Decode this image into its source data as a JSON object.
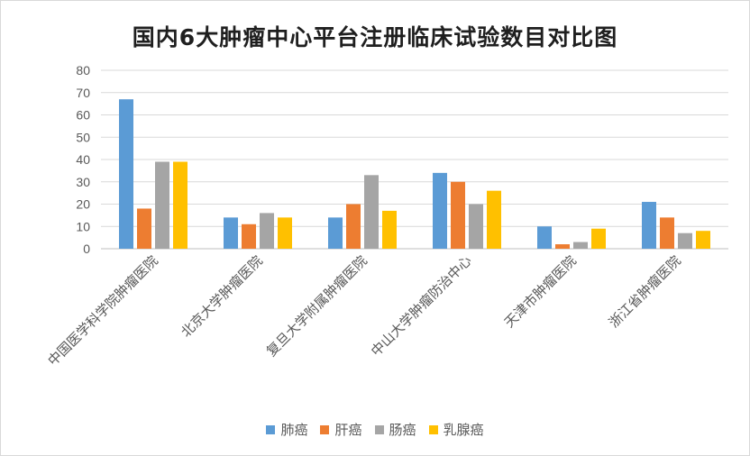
{
  "chart_data": {
    "type": "bar",
    "title": "国内6大肿瘤中心平台注册临床试验数目对比图",
    "categories": [
      "中国医学科学院肿瘤医院",
      "北京大学肿瘤医院",
      "复旦大学附属肿瘤医院",
      "中山大学肿瘤防治中心",
      "天津市肿瘤医院",
      "浙江省肿瘤医院"
    ],
    "series": [
      {
        "name": "肺癌",
        "color": "#5b9bd5",
        "values": [
          67,
          14,
          14,
          34,
          10,
          21
        ]
      },
      {
        "name": "肝癌",
        "color": "#ed7d31",
        "values": [
          18,
          11,
          20,
          30,
          2,
          14
        ]
      },
      {
        "name": "肠癌",
        "color": "#a5a5a5",
        "values": [
          39,
          16,
          33,
          20,
          3,
          7
        ]
      },
      {
        "name": "乳腺癌",
        "color": "#ffc000",
        "values": [
          39,
          14,
          17,
          26,
          9,
          8
        ]
      }
    ],
    "ylim": [
      0,
      80
    ],
    "yticks": [
      "0",
      "10",
      "20",
      "30",
      "40",
      "50",
      "60",
      "70",
      "80"
    ],
    "xlabel": "",
    "ylabel": "",
    "grid": true,
    "legend_position": "bottom"
  }
}
